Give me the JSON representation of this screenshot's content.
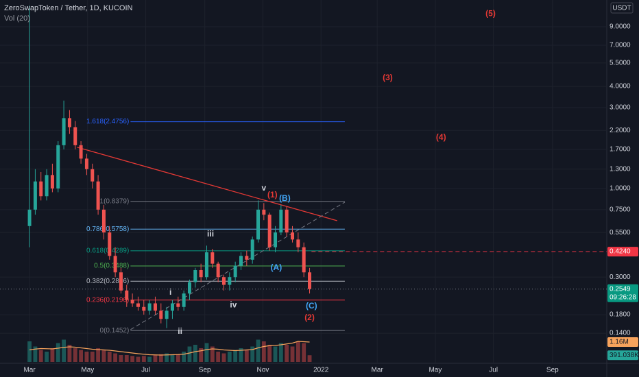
{
  "chart_data": {
    "type": "candlestick",
    "title": "ZeroSwapToken / Tether, 1D, KUCOIN",
    "subtitle": "Vol (20)",
    "currency": "USDT",
    "log_scale": true,
    "xlim": [
      -31,
      606
    ],
    "ylim": [
      0.093,
      12.94
    ],
    "xticks": [
      {
        "value": 0,
        "label": "Mar"
      },
      {
        "value": 61,
        "label": "May"
      },
      {
        "value": 122,
        "label": "Jul"
      },
      {
        "value": 184,
        "label": "Sep"
      },
      {
        "value": 245,
        "label": "Nov"
      },
      {
        "value": 306,
        "label": "2022"
      },
      {
        "value": 365,
        "label": "Mar"
      },
      {
        "value": 426,
        "label": "May"
      },
      {
        "value": 487,
        "label": "Jul"
      },
      {
        "value": 549,
        "label": "Sep"
      }
    ],
    "yticks": [
      {
        "value": 9,
        "label": "9.0000"
      },
      {
        "value": 7,
        "label": "7.0000"
      },
      {
        "value": 5.5,
        "label": "5.5000"
      },
      {
        "value": 4,
        "label": "4.0000"
      },
      {
        "value": 3,
        "label": "3.0000"
      },
      {
        "value": 2.2,
        "label": "2.2000"
      },
      {
        "value": 1.7,
        "label": "1.7000"
      },
      {
        "value": 1.3,
        "label": "1.3000"
      },
      {
        "value": 1,
        "label": "1.0000"
      },
      {
        "value": 0.75,
        "label": "0.7500"
      },
      {
        "value": 0.55,
        "label": "0.5500"
      },
      {
        "value": 0.3,
        "label": "0.3000"
      },
      {
        "value": 0.18,
        "label": "0.1800"
      },
      {
        "value": 0.14,
        "label": "0.1400"
      }
    ],
    "up_color": "#26a69a",
    "down_color": "#ef5350",
    "x": [
      0,
      6,
      12,
      18,
      24,
      30,
      36,
      42,
      48,
      54,
      60,
      66,
      72,
      78,
      84,
      90,
      96,
      102,
      108,
      114,
      120,
      126,
      132,
      138,
      144,
      150,
      156,
      162,
      168,
      174,
      180,
      186,
      192,
      198,
      204,
      210,
      216,
      222,
      228,
      234,
      240,
      246,
      252,
      258,
      264,
      270,
      276,
      282,
      288,
      294
    ],
    "open": [
      0.6,
      0.75,
      1.1,
      0.9,
      1.2,
      1.0,
      1.8,
      2.6,
      2.3,
      1.8,
      1.5,
      1.3,
      1.1,
      0.75,
      0.55,
      0.4,
      0.32,
      0.25,
      0.22,
      0.21,
      0.2,
      0.19,
      0.21,
      0.19,
      0.17,
      0.19,
      0.21,
      0.2,
      0.24,
      0.28,
      0.33,
      0.3,
      0.42,
      0.36,
      0.3,
      0.27,
      0.3,
      0.35,
      0.4,
      0.38,
      0.5,
      0.75,
      0.7,
      0.45,
      0.55,
      0.75,
      0.55,
      0.5,
      0.45,
      0.32
    ],
    "high": [
      12,
      1.3,
      1.25,
      1.3,
      1.4,
      1.9,
      3.3,
      2.9,
      2.5,
      1.9,
      1.6,
      1.4,
      1.2,
      0.8,
      0.6,
      0.45,
      0.34,
      0.27,
      0.24,
      0.23,
      0.22,
      0.22,
      0.23,
      0.21,
      0.2,
      0.22,
      0.23,
      0.25,
      0.29,
      0.34,
      0.36,
      0.46,
      0.44,
      0.37,
      0.31,
      0.32,
      0.37,
      0.42,
      0.43,
      0.52,
      0.85,
      0.82,
      0.72,
      0.6,
      0.8,
      0.78,
      0.6,
      0.55,
      0.48,
      0.34
    ],
    "low": [
      0.45,
      0.7,
      0.85,
      0.85,
      0.95,
      0.95,
      1.7,
      2.1,
      1.7,
      1.4,
      1.2,
      1.0,
      0.7,
      0.5,
      0.38,
      0.3,
      0.24,
      0.2,
      0.2,
      0.19,
      0.18,
      0.18,
      0.18,
      0.16,
      0.15,
      0.17,
      0.19,
      0.19,
      0.22,
      0.26,
      0.28,
      0.29,
      0.34,
      0.28,
      0.25,
      0.25,
      0.28,
      0.33,
      0.35,
      0.36,
      0.48,
      0.65,
      0.43,
      0.42,
      0.53,
      0.52,
      0.48,
      0.42,
      0.3,
      0.24
    ],
    "close": [
      0.75,
      1.1,
      0.9,
      1.2,
      1.0,
      1.8,
      2.6,
      2.3,
      1.8,
      1.5,
      1.3,
      1.1,
      0.75,
      0.55,
      0.4,
      0.32,
      0.25,
      0.22,
      0.21,
      0.2,
      0.19,
      0.21,
      0.19,
      0.17,
      0.19,
      0.21,
      0.2,
      0.24,
      0.28,
      0.33,
      0.3,
      0.42,
      0.36,
      0.3,
      0.27,
      0.3,
      0.35,
      0.4,
      0.38,
      0.5,
      0.75,
      0.7,
      0.45,
      0.55,
      0.75,
      0.55,
      0.5,
      0.45,
      0.32,
      0.2549
    ],
    "vlim": [
      0,
      1600000
    ],
    "volume": [
      1200000,
      900000,
      700000,
      600000,
      800000,
      1100000,
      1300000,
      1000000,
      800000,
      700000,
      600000,
      600000,
      800000,
      700000,
      600000,
      500000,
      400000,
      400000,
      350000,
      300000,
      350000,
      300000,
      400000,
      450000,
      500000,
      400000,
      450000,
      600000,
      900000,
      1000000,
      800000,
      1100000,
      900000,
      600000,
      500000,
      600000,
      700000,
      800000,
      700000,
      900000,
      1300000,
      1200000,
      1000000,
      900000,
      1100000,
      1000000,
      900000,
      1200000,
      1100000,
      391038
    ],
    "volume_ma": [
      700000,
      750000,
      780000,
      770000,
      760000,
      800000,
      850000,
      880000,
      860000,
      820000,
      780000,
      740000,
      720000,
      700000,
      680000,
      640000,
      600000,
      560000,
      520000,
      480000,
      450000,
      420000,
      410000,
      400000,
      410000,
      420000,
      430000,
      450000,
      520000,
      600000,
      650000,
      720000,
      760000,
      740000,
      700000,
      680000,
      660000,
      680000,
      700000,
      720000,
      820000,
      900000,
      950000,
      960000,
      1000000,
      1050000,
      1100000,
      1200000,
      1180000,
      1160000
    ],
    "volume_ma_color": "#f7a35c",
    "volume_labels": [
      {
        "value": 1160000,
        "label": "1.16M",
        "color": "#f7a35c"
      },
      {
        "value": 391038,
        "label": "391.038K",
        "color": "#26a69a"
      }
    ],
    "price_labels": [
      {
        "value": 0.424,
        "label": "0.4240",
        "color": "#f23645"
      },
      {
        "value": 0.2549,
        "label": "0.2549",
        "color": "#089981",
        "countdown": "09:26:28"
      }
    ],
    "fib": {
      "x_range": [
        106,
        331
      ],
      "levels": [
        {
          "value": 2.4756,
          "label": "1.618(2.4756)",
          "color": "#2962ff"
        },
        {
          "value": 0.8379,
          "label": "1(0.8379)",
          "color": "#787b86"
        },
        {
          "value": 0.5758,
          "label": "0.786(0.5758)",
          "color": "#64b5f6"
        },
        {
          "value": 0.4289,
          "label": "0.618(0.4289)",
          "color": "#089981"
        },
        {
          "value": 0.3488,
          "label": "0.5(0.3488)",
          "color": "#4caf50"
        },
        {
          "value": 0.2836,
          "label": "0.382(0.2836)",
          "color": "#b2b5be"
        },
        {
          "value": 0.2196,
          "label": "0.236(0.2196)",
          "color": "#f23645"
        },
        {
          "value": 0.1452,
          "label": "0(0.1452)",
          "color": "#787b86"
        }
      ]
    },
    "trendlines": [
      {
        "x": [
          50,
          323
        ],
        "y": [
          1.75,
          0.645
        ],
        "color": "#e53935",
        "dashed": false
      },
      {
        "x": [
          106,
          331
        ],
        "y": [
          0.147,
          0.83
        ],
        "color": "#787b86",
        "dashed": true
      },
      {
        "x": [
          296,
          606
        ],
        "y": [
          0.424,
          0.424
        ],
        "color": "#f23645",
        "dashed": true
      }
    ],
    "waves": [
      {
        "text": "v",
        "x": 246,
        "y": 1.0,
        "color": "#d1d4dc"
      },
      {
        "text": "(1)",
        "x": 255,
        "y": 0.91,
        "color": "#e53935"
      },
      {
        "text": "(B)",
        "x": 268,
        "y": 0.87,
        "color": "#42a5f5"
      },
      {
        "text": "iii",
        "x": 190,
        "y": 0.536,
        "color": "#d1d4dc"
      },
      {
        "text": "(A)",
        "x": 259,
        "y": 0.34,
        "color": "#42a5f5"
      },
      {
        "text": "i",
        "x": 148,
        "y": 0.243,
        "color": "#d1d4dc"
      },
      {
        "text": "iv",
        "x": 214,
        "y": 0.205,
        "color": "#d1d4dc"
      },
      {
        "text": "(C)",
        "x": 296,
        "y": 0.202,
        "color": "#42a5f5"
      },
      {
        "text": "(2)",
        "x": 294,
        "y": 0.172,
        "color": "#e53935"
      },
      {
        "text": "ii",
        "x": 158,
        "y": 0.143,
        "color": "#d1d4dc"
      },
      {
        "text": "(3)",
        "x": 376,
        "y": 4.48,
        "color": "#e53935"
      },
      {
        "text": "(4)",
        "x": 432,
        "y": 1.99,
        "color": "#e53935"
      },
      {
        "text": "(5)",
        "x": 484,
        "y": 10.7,
        "color": "#e53935"
      }
    ]
  }
}
